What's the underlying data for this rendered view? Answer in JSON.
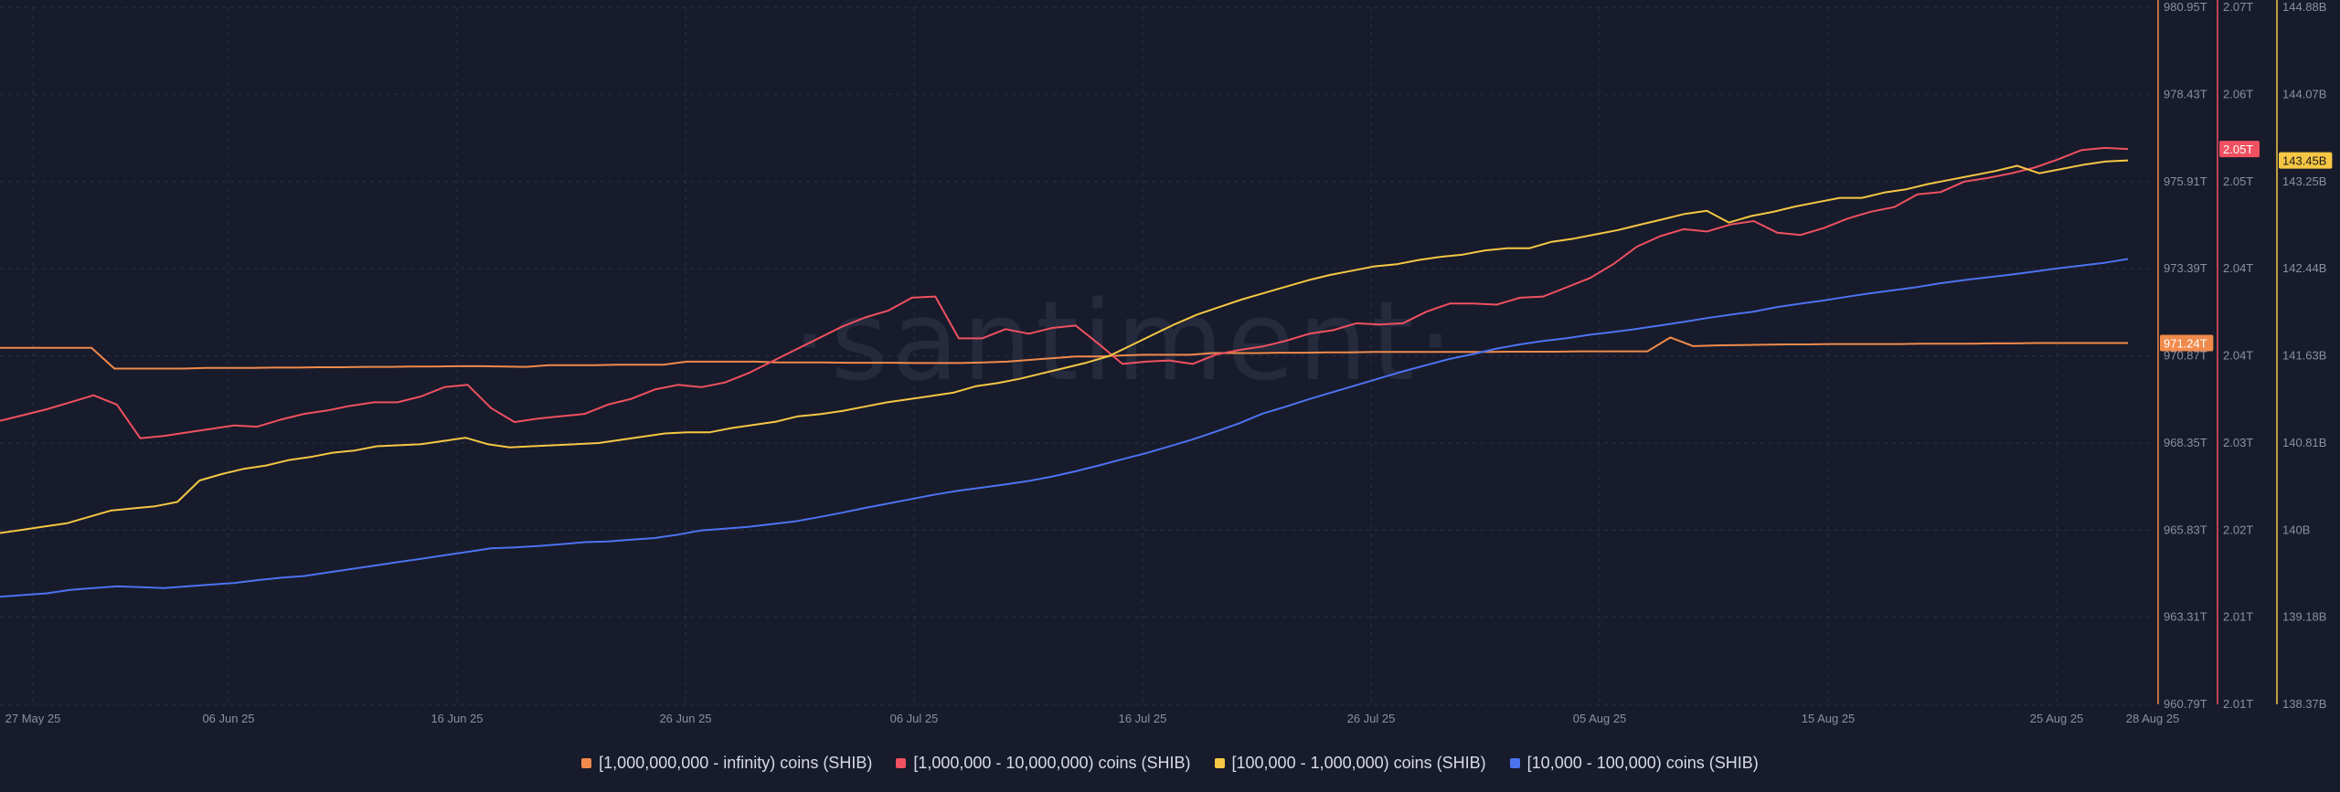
{
  "watermark": "·santiment·",
  "colors": {
    "background": "#181b2b",
    "grid": "#2a2f44",
    "s1": "#f08a4b",
    "s2": "#ef5160",
    "s3": "#f5c744",
    "s4": "#4d72f2"
  },
  "legend": [
    {
      "label": "[1,000,000,000 - infinity) coins (SHIB)",
      "color": "#f08a4b"
    },
    {
      "label": "[1,000,000 - 10,000,000) coins (SHIB)",
      "color": "#ef5160"
    },
    {
      "label": "[100,000  - 1,000,000) coins (SHIB)",
      "color": "#f5c744"
    },
    {
      "label": "[10,000 - 100,000) coins (SHIB)",
      "color": "#4d72f2"
    }
  ],
  "chart_data": {
    "type": "line",
    "x_tick_labels": [
      "27 May 25",
      "06 Jun 25",
      "16 Jun 25",
      "26 Jun 25",
      "06 Jul 25",
      "16 Jul 25",
      "26 Jul 25",
      "05 Aug 25",
      "15 Aug 25",
      "25 Aug 25",
      "28 Aug 25"
    ],
    "x_range_days": [
      0,
      93
    ],
    "axes": [
      {
        "id": "a1",
        "color": "#f08a4b",
        "ticks": [
          "980.95T",
          "978.43T",
          "975.91T",
          "973.39T",
          "970.87T",
          "968.35T",
          "965.83T",
          "963.31T",
          "960.79T"
        ],
        "range": [
          960.79,
          980.95
        ],
        "unit": "T",
        "current_badge": "971.24T"
      },
      {
        "id": "a2",
        "color": "#ef5160",
        "ticks": [
          "2.07T",
          "2.06T",
          "2.05T",
          "2.04T",
          "2.04T",
          "2.03T",
          "2.02T",
          "2.01T",
          "2.01T"
        ],
        "range": [
          2.007,
          2.067
        ],
        "unit": "T",
        "current_badge": "2.05T"
      },
      {
        "id": "a3",
        "color": "#f5c744",
        "ticks": [
          "144.88B",
          "144.07B",
          "143.25B",
          "142.44B",
          "141.63B",
          "140.81B",
          "140B",
          "139.18B",
          "138.37B"
        ],
        "range": [
          138.37,
          144.88
        ],
        "unit": "B",
        "current_badge": "143.45B"
      }
    ],
    "series": [
      {
        "name": "[1,000,000,000 - infinity) coins (SHIB)",
        "axis": "a1",
        "values": [
          971.1,
          971.1,
          971.1,
          971.1,
          971.1,
          970.5,
          970.5,
          970.5,
          970.5,
          970.52,
          970.52,
          970.52,
          970.53,
          970.53,
          970.54,
          970.54,
          970.55,
          970.55,
          970.56,
          970.56,
          970.57,
          970.57,
          970.56,
          970.55,
          970.6,
          970.6,
          970.6,
          970.61,
          970.61,
          970.61,
          970.7,
          970.7,
          970.7,
          970.7,
          970.68,
          970.68,
          970.68,
          970.67,
          970.67,
          970.67,
          970.66,
          970.66,
          970.66,
          970.68,
          970.7,
          970.75,
          970.8,
          970.85,
          970.85,
          970.88,
          970.9,
          970.9,
          970.9,
          970.95,
          970.95,
          970.95,
          970.96,
          970.96,
          970.97,
          970.97,
          970.98,
          970.98,
          970.98,
          970.98,
          970.98,
          970.98,
          970.99,
          970.99,
          970.99,
          971.0,
          971.0,
          971.0,
          971.0,
          971.4,
          971.15,
          971.17,
          971.18,
          971.19,
          971.2,
          971.2,
          971.21,
          971.21,
          971.21,
          971.21,
          971.22,
          971.22,
          971.22,
          971.23,
          971.23,
          971.24,
          971.24,
          971.24,
          971.24,
          971.24
        ]
      },
      {
        "name": "[1,000,000 - 10,000,000) coins (SHIB)",
        "axis": "a2",
        "values": [
          2.0314,
          2.0319,
          2.0324,
          2.033,
          2.0336,
          2.0328,
          2.0299,
          2.0301,
          2.0304,
          2.0307,
          2.031,
          2.0309,
          2.0315,
          2.032,
          2.0323,
          2.0327,
          2.033,
          2.033,
          2.0335,
          2.0343,
          2.0345,
          2.0325,
          2.0313,
          2.0316,
          2.0318,
          2.032,
          2.0328,
          2.0333,
          2.0341,
          2.0345,
          2.0343,
          2.0347,
          2.0355,
          2.0365,
          2.0375,
          2.0385,
          2.0395,
          2.0403,
          2.0409,
          2.042,
          2.0421,
          2.0385,
          2.0385,
          2.0393,
          2.0389,
          2.0394,
          2.0396,
          2.038,
          2.0363,
          2.0365,
          2.0366,
          2.0363,
          2.0371,
          2.0375,
          2.0378,
          2.0383,
          2.0389,
          2.0392,
          2.0398,
          2.0397,
          2.0398,
          2.0408,
          2.0415,
          2.0415,
          2.0414,
          2.042,
          2.0421,
          2.0429,
          2.0437,
          2.0449,
          2.0464,
          2.0473,
          2.0479,
          2.0477,
          2.0483,
          2.0486,
          2.0476,
          2.0474,
          2.048,
          2.0488,
          2.0494,
          2.0498,
          2.0509,
          2.0511,
          2.052,
          2.0523,
          2.0527,
          2.0532,
          2.0539,
          2.0547,
          2.0549,
          2.0548
        ]
      },
      {
        "name": "[100,000  - 1,000,000) coins (SHIB)",
        "axis": "a3",
        "values": [
          139.97,
          140.0,
          140.03,
          140.06,
          140.12,
          140.18,
          140.2,
          140.22,
          140.26,
          140.46,
          140.52,
          140.57,
          140.6,
          140.65,
          140.68,
          140.72,
          140.74,
          140.78,
          140.79,
          140.8,
          140.83,
          140.86,
          140.8,
          140.77,
          140.78,
          140.79,
          140.8,
          140.81,
          140.84,
          140.87,
          140.9,
          140.91,
          140.91,
          140.95,
          140.98,
          141.01,
          141.06,
          141.08,
          141.11,
          141.15,
          141.19,
          141.22,
          141.25,
          141.28,
          141.34,
          141.37,
          141.41,
          141.46,
          141.51,
          141.56,
          141.62,
          141.72,
          141.82,
          141.92,
          142.01,
          142.08,
          142.15,
          142.21,
          142.27,
          142.33,
          142.38,
          142.42,
          142.46,
          142.48,
          142.52,
          142.55,
          142.57,
          142.61,
          142.63,
          142.63,
          142.69,
          142.72,
          142.76,
          142.8,
          142.85,
          142.9,
          142.95,
          142.98,
          142.87,
          142.93,
          142.97,
          143.02,
          143.06,
          143.1,
          143.1,
          143.15,
          143.18,
          143.23,
          143.27,
          143.31,
          143.35,
          143.4,
          143.33,
          143.37,
          143.41,
          143.44,
          143.45
        ]
      },
      {
        "name": "[10,000 - 100,000) coins (SHIB)",
        "axis": "a1",
        "values": [
          963.9,
          963.95,
          964.0,
          964.1,
          964.15,
          964.2,
          964.18,
          964.15,
          964.2,
          964.25,
          964.3,
          964.38,
          964.45,
          964.5,
          964.6,
          964.7,
          964.8,
          964.9,
          965.0,
          965.1,
          965.2,
          965.3,
          965.33,
          965.37,
          965.42,
          965.48,
          965.5,
          965.55,
          965.6,
          965.7,
          965.82,
          965.87,
          965.92,
          966.0,
          966.08,
          966.2,
          966.33,
          966.47,
          966.6,
          966.73,
          966.86,
          966.97,
          967.06,
          967.15,
          967.25,
          967.38,
          967.53,
          967.7,
          967.88,
          968.05,
          968.25,
          968.45,
          968.68,
          968.92,
          969.2,
          969.4,
          969.62,
          969.82,
          970.02,
          970.22,
          970.42,
          970.6,
          970.78,
          970.92,
          971.08,
          971.2,
          971.3,
          971.38,
          971.48,
          971.56,
          971.65,
          971.75,
          971.85,
          971.96,
          972.06,
          972.15,
          972.28,
          972.38,
          972.47,
          972.58,
          972.68,
          972.77,
          972.86,
          972.97,
          973.06,
          973.14,
          973.22,
          973.31,
          973.4,
          973.48,
          973.56,
          973.67
        ]
      }
    ]
  }
}
